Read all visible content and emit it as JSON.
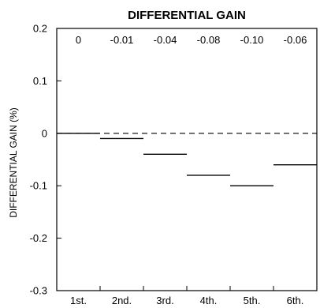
{
  "chart_data": {
    "type": "bar",
    "title": "DIFFERENTIAL GAIN",
    "ylabel": "DIFFERENTIAL GAIN (%)",
    "xlabel": "",
    "categories": [
      "1st.",
      "2nd.",
      "3rd.",
      "4th.",
      "5th.",
      "6th."
    ],
    "values": [
      0,
      -0.01,
      -0.04,
      -0.08,
      -0.1,
      -0.06
    ],
    "value_labels": [
      "0",
      "-0.01",
      "-0.04",
      "-0.08",
      "-0.10",
      "-0.06"
    ],
    "ylim": [
      -0.3,
      0.2
    ],
    "yticks": [
      "0.2",
      "0.1",
      "0",
      "-0.1",
      "-0.2",
      "-0.3"
    ],
    "ytick_values": [
      0.2,
      0.1,
      0,
      -0.1,
      -0.2,
      -0.3
    ],
    "reference_line": 0,
    "grid": false
  }
}
